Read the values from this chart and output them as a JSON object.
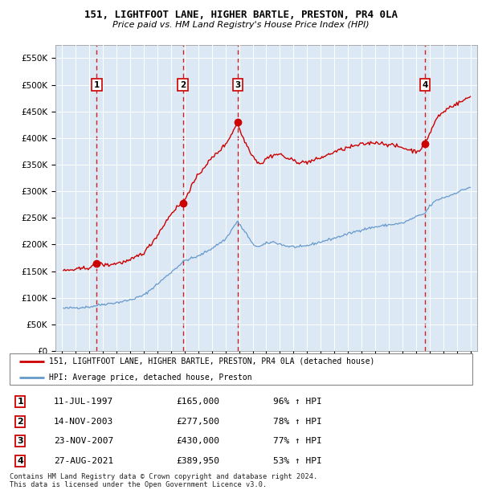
{
  "title": "151, LIGHTFOOT LANE, HIGHER BARTLE, PRESTON, PR4 0LA",
  "subtitle": "Price paid vs. HM Land Registry's House Price Index (HPI)",
  "plot_bg_color": "#dce9f5",
  "ylim": [
    0,
    575000
  ],
  "yticks": [
    0,
    50000,
    100000,
    150000,
    200000,
    250000,
    300000,
    350000,
    400000,
    450000,
    500000,
    550000
  ],
  "ytick_labels": [
    "£0",
    "£50K",
    "£100K",
    "£150K",
    "£200K",
    "£250K",
    "£300K",
    "£350K",
    "£400K",
    "£450K",
    "£500K",
    "£550K"
  ],
  "sale_dates_year": [
    1997.53,
    2003.87,
    2007.9,
    2021.65
  ],
  "sale_prices": [
    165000,
    277500,
    430000,
    389950
  ],
  "sale_labels": [
    "1",
    "2",
    "3",
    "4"
  ],
  "hpi_line_color": "#6699cc",
  "price_line_color": "#cc0000",
  "sale_marker_color": "#cc0000",
  "vline_color": "#cc0000",
  "grid_color": "#ffffff",
  "legend_house_label": "151, LIGHTFOOT LANE, HIGHER BARTLE, PRESTON, PR4 0LA (detached house)",
  "legend_hpi_label": "HPI: Average price, detached house, Preston",
  "table_data": [
    [
      "1",
      "11-JUL-1997",
      "£165,000",
      "96% ↑ HPI"
    ],
    [
      "2",
      "14-NOV-2003",
      "£277,500",
      "78% ↑ HPI"
    ],
    [
      "3",
      "23-NOV-2007",
      "£430,000",
      "77% ↑ HPI"
    ],
    [
      "4",
      "27-AUG-2021",
      "£389,950",
      "53% ↑ HPI"
    ]
  ],
  "footnote": "Contains HM Land Registry data © Crown copyright and database right 2024.\nThis data is licensed under the Open Government Licence v3.0.",
  "xlim_start": 1994.5,
  "xlim_end": 2025.5,
  "hpi_anchors": {
    "1995.0": 80000,
    "1997.0": 83000,
    "1998.0": 88000,
    "1999.0": 91000,
    "2000.0": 96000,
    "2001.0": 105000,
    "2002.0": 126000,
    "2003.0": 148000,
    "2004.0": 170000,
    "2005.0": 178000,
    "2006.0": 193000,
    "2007.0": 210000,
    "2007.9": 245000,
    "2008.0": 238000,
    "2008.5": 222000,
    "2009.0": 200000,
    "2009.5": 196000,
    "2010.0": 202000,
    "2010.5": 205000,
    "2011.0": 201000,
    "2011.5": 197000,
    "2012.0": 196000,
    "2012.5": 195000,
    "2013.0": 198000,
    "2014.0": 205000,
    "2015.0": 212000,
    "2016.0": 220000,
    "2017.0": 228000,
    "2018.0": 233000,
    "2019.0": 237000,
    "2020.0": 240000,
    "2021.0": 252000,
    "2021.65": 258000,
    "2022.0": 272000,
    "2022.5": 283000,
    "2023.0": 288000,
    "2023.5": 292000,
    "2024.0": 298000,
    "2024.5": 303000,
    "2025.0": 308000
  },
  "price_anchors": {
    "1995.0": 150000,
    "1995.5": 152000,
    "1996.0": 153000,
    "1996.5": 155000,
    "1997.0": 157000,
    "1997.53": 165000,
    "1998.0": 162000,
    "1998.5": 162000,
    "1999.0": 165000,
    "1999.5": 167000,
    "2000.0": 170000,
    "2000.5": 178000,
    "2001.0": 185000,
    "2001.5": 200000,
    "2002.0": 218000,
    "2002.5": 238000,
    "2003.0": 258000,
    "2003.5": 272000,
    "2003.87": 277500,
    "2004.0": 283000,
    "2004.2": 295000,
    "2004.5": 310000,
    "2005.0": 330000,
    "2005.5": 348000,
    "2006.0": 362000,
    "2006.5": 375000,
    "2007.0": 388000,
    "2007.5": 410000,
    "2007.9": 430000,
    "2008.0": 418000,
    "2008.3": 400000,
    "2008.6": 385000,
    "2009.0": 367000,
    "2009.3": 356000,
    "2009.7": 352000,
    "2010.0": 362000,
    "2010.5": 368000,
    "2011.0": 370000,
    "2011.5": 362000,
    "2012.0": 358000,
    "2012.5": 354000,
    "2013.0": 355000,
    "2013.5": 358000,
    "2014.0": 363000,
    "2014.5": 368000,
    "2015.0": 374000,
    "2015.5": 378000,
    "2016.0": 382000,
    "2016.5": 385000,
    "2017.0": 388000,
    "2017.5": 390000,
    "2018.0": 392000,
    "2018.5": 390000,
    "2019.0": 388000,
    "2019.5": 385000,
    "2020.0": 382000,
    "2020.5": 378000,
    "2021.0": 375000,
    "2021.3": 378000,
    "2021.65": 389950,
    "2022.0": 408000,
    "2022.3": 425000,
    "2022.6": 440000,
    "2023.0": 448000,
    "2023.3": 455000,
    "2023.6": 460000,
    "2024.0": 464000,
    "2024.3": 468000,
    "2024.6": 472000,
    "2025.0": 478000
  }
}
